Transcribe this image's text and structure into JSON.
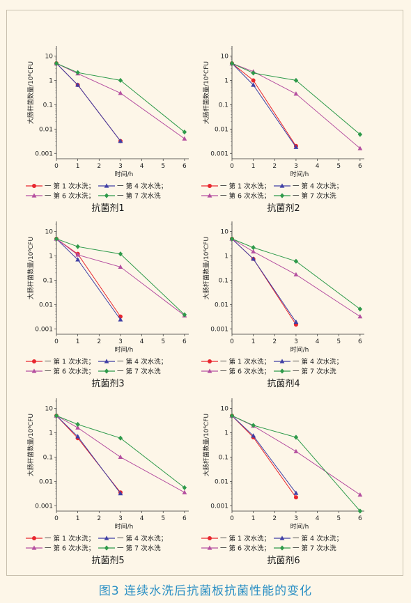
{
  "figure_caption": "图3 连续水洗后抗菌板抗菌性能的变化",
  "colors": {
    "series": [
      "#e8262e",
      "#3f3fa5",
      "#b54fa0",
      "#2e9a4a"
    ],
    "background": "#fdf6e8",
    "caption": "#2a8fc4"
  },
  "legend_items": [
    {
      "label": "第 1 次水洗；",
      "marker": "circle"
    },
    {
      "label": "第 4 次水洗；",
      "marker": "triangle"
    },
    {
      "label": "第 6 次水洗；",
      "marker": "triangle"
    },
    {
      "label": "第 7 次水洗",
      "marker": "diamond"
    }
  ],
  "chart_data": [
    {
      "type": "line",
      "caption": "抗菌剂1",
      "xlabel": "时间/h",
      "ylabel": "大肠杆菌数量/10⁶CFU",
      "xlim": [
        0,
        6.2
      ],
      "ylim": [
        0.0006,
        20
      ],
      "yscale": "log",
      "xticks": [
        "0",
        "1",
        "2",
        "3",
        "4",
        "5",
        "6"
      ],
      "yticks": [
        "0.001",
        "0.01",
        "0.1",
        "1",
        "10"
      ],
      "series": [
        {
          "name": "第 1 次水洗",
          "marker": "circle",
          "x": [
            0,
            1,
            3
          ],
          "y": [
            5,
            0.65,
            0.0032
          ]
        },
        {
          "name": "第 4 次水洗",
          "marker": "triangle",
          "x": [
            0,
            1,
            3
          ],
          "y": [
            5,
            0.65,
            0.0032
          ]
        },
        {
          "name": "第 6 次水洗",
          "marker": "triangle",
          "x": [
            0,
            1,
            3,
            6
          ],
          "y": [
            5,
            1.9,
            0.3,
            0.004
          ]
        },
        {
          "name": "第 7 次水洗",
          "marker": "diamond",
          "x": [
            0,
            1,
            3,
            6
          ],
          "y": [
            5,
            2.1,
            1.0,
            0.0075
          ]
        }
      ]
    },
    {
      "type": "line",
      "caption": "抗菌剂2",
      "xlabel": "时间/h",
      "ylabel": "大肠杆菌数量/10⁶CFU",
      "xlim": [
        0,
        6.2
      ],
      "ylim": [
        0.0006,
        20
      ],
      "yscale": "log",
      "xticks": [
        "0",
        "1",
        "2",
        "3",
        "4",
        "5",
        "6"
      ],
      "yticks": [
        "0.001",
        "0.01",
        "0.1",
        "1",
        "10"
      ],
      "series": [
        {
          "name": "第 1 次水洗",
          "marker": "circle",
          "x": [
            0,
            1,
            3
          ],
          "y": [
            5,
            1.0,
            0.002
          ]
        },
        {
          "name": "第 4 次水洗",
          "marker": "triangle",
          "x": [
            0,
            1,
            3
          ],
          "y": [
            5,
            0.65,
            0.0018
          ]
        },
        {
          "name": "第 6 次水洗",
          "marker": "triangle",
          "x": [
            0,
            1,
            3,
            6
          ],
          "y": [
            5,
            2.3,
            0.28,
            0.0016
          ]
        },
        {
          "name": "第 7 次水洗",
          "marker": "diamond",
          "x": [
            0,
            1,
            3,
            6
          ],
          "y": [
            5,
            2.0,
            1.0,
            0.006
          ]
        }
      ]
    },
    {
      "type": "line",
      "caption": "抗菌剂3",
      "xlabel": "时间/h",
      "ylabel": "大肠杆菌数量/10⁶CFU",
      "xlim": [
        0,
        6.2
      ],
      "ylim": [
        0.0006,
        20
      ],
      "yscale": "log",
      "xticks": [
        "0",
        "1",
        "2",
        "3",
        "4",
        "5",
        "6"
      ],
      "yticks": [
        "0.001",
        "0.01",
        "0.1",
        "1",
        "10"
      ],
      "series": [
        {
          "name": "第 1 次水洗",
          "marker": "circle",
          "x": [
            0,
            1,
            3
          ],
          "y": [
            5,
            1.2,
            0.0032
          ]
        },
        {
          "name": "第 4 次水洗",
          "marker": "triangle",
          "x": [
            0,
            1,
            3
          ],
          "y": [
            5,
            0.7,
            0.0024
          ]
        },
        {
          "name": "第 6 次水洗",
          "marker": "triangle",
          "x": [
            0,
            1,
            3,
            6
          ],
          "y": [
            5,
            1.1,
            0.35,
            0.0035
          ]
        },
        {
          "name": "第 7 次水洗",
          "marker": "diamond",
          "x": [
            0,
            1,
            3,
            6
          ],
          "y": [
            5,
            2.4,
            1.2,
            0.0038
          ]
        }
      ]
    },
    {
      "type": "line",
      "caption": "抗菌剂4",
      "xlabel": "时间/h",
      "ylabel": "大肠杆菌数量/10⁶CFU",
      "xlim": [
        0,
        6.2
      ],
      "ylim": [
        0.0006,
        20
      ],
      "yscale": "log",
      "xticks": [
        "0",
        "1",
        "2",
        "3",
        "4",
        "5",
        "6"
      ],
      "yticks": [
        "0.001",
        "0.01",
        "0.1",
        "1",
        "10"
      ],
      "series": [
        {
          "name": "第 1 次水洗",
          "marker": "circle",
          "x": [
            0,
            1,
            3
          ],
          "y": [
            5,
            0.75,
            0.0015
          ]
        },
        {
          "name": "第 4 次水洗",
          "marker": "triangle",
          "x": [
            0,
            1,
            3
          ],
          "y": [
            5,
            0.75,
            0.0019
          ]
        },
        {
          "name": "第 6 次水洗",
          "marker": "triangle",
          "x": [
            0,
            1,
            3,
            6
          ],
          "y": [
            5,
            1.5,
            0.17,
            0.0032
          ]
        },
        {
          "name": "第 7 次水洗",
          "marker": "diamond",
          "x": [
            0,
            1,
            3,
            6
          ],
          "y": [
            5,
            2.2,
            0.6,
            0.0065
          ]
        }
      ]
    },
    {
      "type": "line",
      "caption": "抗菌剂5",
      "xlabel": "时间/h",
      "ylabel": "大肠杆菌数量/10⁶CFU",
      "xlim": [
        0,
        6.2
      ],
      "ylim": [
        0.0006,
        20
      ],
      "yscale": "log",
      "xticks": [
        "0",
        "1",
        "2",
        "3",
        "4",
        "5",
        "6"
      ],
      "yticks": [
        "0.001",
        "0.01",
        "0.1",
        "1",
        "10"
      ],
      "series": [
        {
          "name": "第 1 次水洗",
          "marker": "circle",
          "x": [
            0,
            1,
            3
          ],
          "y": [
            5,
            0.6,
            0.0035
          ]
        },
        {
          "name": "第 4 次水洗",
          "marker": "triangle",
          "x": [
            0,
            1,
            3
          ],
          "y": [
            5,
            0.7,
            0.0032
          ]
        },
        {
          "name": "第 6 次水洗",
          "marker": "triangle",
          "x": [
            0,
            1,
            3,
            6
          ],
          "y": [
            5,
            1.6,
            0.1,
            0.0035
          ]
        },
        {
          "name": "第 7 次水洗",
          "marker": "diamond",
          "x": [
            0,
            1,
            3,
            6
          ],
          "y": [
            5,
            2.2,
            0.6,
            0.0055
          ]
        }
      ]
    },
    {
      "type": "line",
      "caption": "抗菌剂6",
      "xlabel": "时间/h",
      "ylabel": "大肠杆菌数量/10⁶CFU",
      "xlim": [
        0,
        6.2
      ],
      "ylim": [
        0.0006,
        20
      ],
      "yscale": "log",
      "xticks": [
        "0",
        "1",
        "2",
        "3",
        "4",
        "5",
        "6"
      ],
      "yticks": [
        "0.001",
        "0.01",
        "0.1",
        "1",
        "10"
      ],
      "series": [
        {
          "name": "第 1 次水洗",
          "marker": "circle",
          "x": [
            0,
            1,
            3
          ],
          "y": [
            5,
            0.65,
            0.0022
          ]
        },
        {
          "name": "第 4 次水洗",
          "marker": "triangle",
          "x": [
            0,
            1,
            3
          ],
          "y": [
            5,
            0.75,
            0.0033
          ]
        },
        {
          "name": "第 6 次水洗",
          "marker": "triangle",
          "x": [
            0,
            1,
            3,
            6
          ],
          "y": [
            5,
            1.9,
            0.17,
            0.0028
          ]
        },
        {
          "name": "第 7 次水洗",
          "marker": "diamond",
          "x": [
            0,
            1,
            3,
            6
          ],
          "y": [
            5,
            2.0,
            0.65,
            0.0006
          ]
        }
      ]
    }
  ]
}
